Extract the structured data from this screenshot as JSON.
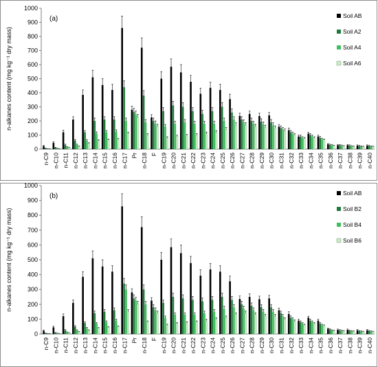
{
  "categories": [
    "n-C9",
    "n-C10",
    "n-C11",
    "n-C12",
    "n-C13",
    "n-C14",
    "n-C15",
    "n-C16",
    "n-C17",
    "Pr",
    "n-C18",
    "F",
    "n-C19",
    "n-C20",
    "n-C21",
    "n-C22",
    "n-C23",
    "n-C24",
    "n-C25",
    "n-C26",
    "n-C27",
    "n-C28",
    "n-C29",
    "n-C30",
    "n-C31",
    "n-C32",
    "n-C33",
    "n-C34",
    "n-C35",
    "n-C36",
    "n-C37",
    "n-C38",
    "n-C39",
    "n-C40"
  ],
  "colors": {
    "dark": "#000000",
    "medium_dark": "#1e7a3a",
    "medium": "#3fbf5c",
    "light": "#c8ebc8",
    "axis": "#7f7f7f",
    "panel_border": "#8c8c8c"
  },
  "chart_data": [
    {
      "type": "bar",
      "panel_label": "(a)",
      "ylabel": "n-alkanes content (mg kg⁻¹ dry mass)",
      "ylim": [
        0,
        1000
      ],
      "yticks": [
        "0",
        "100",
        "200",
        "300",
        "400",
        "500",
        "600",
        "700",
        "800",
        "900",
        "1000"
      ],
      "legend_position": "top-right",
      "error_bars": true,
      "series": [
        {
          "name": "Soil AB",
          "values": [
            22,
            45,
            120,
            210,
            385,
            510,
            455,
            420,
            860,
            280,
            720,
            225,
            500,
            585,
            545,
            478,
            393,
            435,
            420,
            355,
            236,
            250,
            235,
            240,
            160,
            135,
            90,
            110,
            90,
            35,
            28,
            28,
            25,
            25
          ],
          "errors": [
            5,
            8,
            15,
            20,
            35,
            50,
            45,
            40,
            85,
            25,
            70,
            20,
            50,
            55,
            55,
            45,
            40,
            40,
            40,
            35,
            20,
            20,
            20,
            20,
            15,
            15,
            10,
            10,
            10,
            5,
            5,
            5,
            5,
            5
          ]
        },
        {
          "name": "Soil A2",
          "values": [
            5,
            10,
            30,
            60,
            120,
            200,
            210,
            210,
            440,
            265,
            380,
            200,
            270,
            310,
            300,
            270,
            250,
            270,
            300,
            260,
            210,
            200,
            195,
            190,
            150,
            120,
            90,
            100,
            80,
            30,
            28,
            25,
            22,
            22
          ],
          "errors": [
            2,
            3,
            5,
            8,
            12,
            20,
            20,
            20,
            45,
            25,
            35,
            20,
            25,
            30,
            30,
            25,
            25,
            25,
            30,
            25,
            20,
            20,
            20,
            20,
            15,
            12,
            10,
            10,
            10,
            5,
            5,
            5,
            5,
            5
          ]
        },
        {
          "name": "Soil A4",
          "values": [
            3,
            5,
            15,
            30,
            60,
            110,
            120,
            125,
            200,
            245,
            190,
            180,
            160,
            180,
            190,
            180,
            180,
            180,
            200,
            210,
            190,
            180,
            175,
            170,
            140,
            110,
            80,
            90,
            70,
            28,
            25,
            22,
            20,
            20
          ],
          "errors": [
            1,
            2,
            3,
            5,
            8,
            12,
            12,
            12,
            20,
            25,
            20,
            20,
            15,
            18,
            20,
            18,
            18,
            18,
            20,
            20,
            18,
            18,
            18,
            17,
            14,
            11,
            8,
            9,
            7,
            4,
            4,
            3,
            3,
            3
          ]
        },
        {
          "name": "Soil A6",
          "values": [
            2,
            3,
            10,
            20,
            40,
            60,
            65,
            70,
            110,
            225,
            100,
            160,
            80,
            90,
            95,
            100,
            110,
            120,
            140,
            170,
            170,
            160,
            155,
            150,
            130,
            100,
            75,
            80,
            65,
            25,
            22,
            20,
            18,
            18
          ],
          "errors": [
            1,
            1,
            2,
            3,
            5,
            7,
            7,
            7,
            11,
            22,
            10,
            16,
            8,
            9,
            10,
            10,
            11,
            12,
            14,
            17,
            17,
            16,
            15,
            15,
            13,
            10,
            8,
            8,
            7,
            3,
            3,
            3,
            3,
            3
          ]
        }
      ]
    },
    {
      "type": "bar",
      "panel_label": "(b)",
      "ylabel": "n-alkanes content (mg kg⁻¹ dry mass)",
      "ylim": [
        0,
        1000
      ],
      "yticks": [
        "0",
        "100",
        "200",
        "300",
        "400",
        "500",
        "600",
        "700",
        "800",
        "900",
        "1000"
      ],
      "legend_position": "top-right",
      "error_bars": true,
      "series": [
        {
          "name": "Soil AB",
          "values": [
            22,
            45,
            120,
            210,
            385,
            510,
            455,
            420,
            860,
            280,
            720,
            225,
            500,
            585,
            545,
            478,
            393,
            435,
            420,
            355,
            236,
            250,
            235,
            240,
            160,
            135,
            90,
            110,
            90,
            35,
            28,
            28,
            25,
            25
          ],
          "errors": [
            5,
            8,
            15,
            20,
            35,
            50,
            45,
            40,
            85,
            25,
            70,
            20,
            50,
            55,
            55,
            45,
            40,
            40,
            40,
            35,
            20,
            20,
            20,
            20,
            15,
            15,
            10,
            10,
            10,
            5,
            5,
            5,
            5,
            5
          ]
        },
        {
          "name": "Soil B2",
          "values": [
            5,
            8,
            25,
            50,
            75,
            140,
            150,
            160,
            340,
            240,
            300,
            180,
            210,
            250,
            240,
            230,
            220,
            230,
            250,
            230,
            200,
            190,
            180,
            180,
            140,
            110,
            80,
            90,
            70,
            30,
            25,
            22,
            20,
            20
          ],
          "errors": [
            2,
            2,
            4,
            6,
            8,
            14,
            15,
            16,
            35,
            24,
            30,
            18,
            20,
            25,
            24,
            23,
            22,
            23,
            25,
            23,
            20,
            19,
            18,
            18,
            14,
            11,
            8,
            9,
            7,
            4,
            4,
            3,
            3,
            3
          ]
        },
        {
          "name": "Soil B4",
          "values": [
            3,
            5,
            12,
            25,
            40,
            70,
            80,
            90,
            300,
            225,
            200,
            160,
            110,
            130,
            130,
            130,
            140,
            150,
            170,
            180,
            170,
            160,
            150,
            150,
            120,
            100,
            70,
            80,
            60,
            25,
            22,
            20,
            18,
            18
          ],
          "errors": [
            1,
            1,
            2,
            3,
            5,
            7,
            8,
            9,
            30,
            22,
            20,
            16,
            11,
            13,
            13,
            13,
            14,
            15,
            17,
            18,
            17,
            16,
            15,
            15,
            12,
            10,
            7,
            8,
            6,
            3,
            3,
            3,
            3,
            3
          ]
        },
        {
          "name": "Soil B6",
          "values": [
            2,
            3,
            8,
            15,
            25,
            40,
            45,
            50,
            150,
            200,
            80,
            140,
            60,
            70,
            75,
            80,
            90,
            100,
            110,
            130,
            140,
            130,
            120,
            120,
            100,
            85,
            60,
            70,
            55,
            22,
            20,
            18,
            16,
            16
          ],
          "errors": [
            1,
            1,
            1,
            2,
            3,
            4,
            5,
            5,
            15,
            20,
            8,
            14,
            6,
            7,
            8,
            8,
            9,
            10,
            11,
            13,
            14,
            13,
            12,
            12,
            10,
            9,
            6,
            7,
            6,
            3,
            3,
            3,
            2,
            2
          ]
        }
      ]
    }
  ]
}
